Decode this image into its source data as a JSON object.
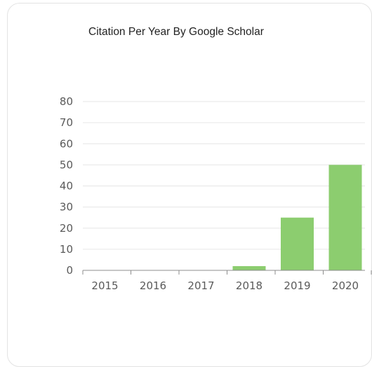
{
  "chart_data": {
    "type": "bar",
    "title": "Citation Per Year By Google Scholar",
    "xlabel": "",
    "ylabel": "",
    "categories": [
      "2015",
      "2016",
      "2017",
      "2018",
      "2019",
      "2020"
    ],
    "values": [
      0,
      0,
      0,
      2,
      25,
      50
    ],
    "ylim": [
      0,
      80
    ],
    "yticks": [
      "0",
      "10",
      "20",
      "30",
      "40",
      "50",
      "60",
      "70",
      "80"
    ],
    "grid": true,
    "bar_color": "#8ccd6f",
    "grid_color": "#e6e6e6",
    "axis_color": "#8c8c8c"
  }
}
